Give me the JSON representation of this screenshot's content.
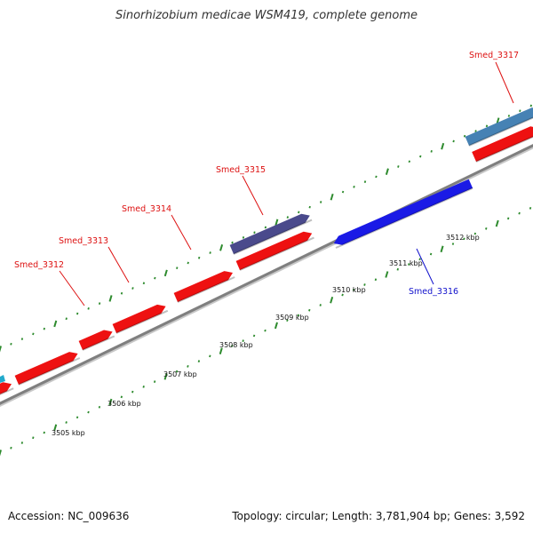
{
  "title": "Sinorhizobium medicae WSM419, complete genome",
  "footer": {
    "accession": "Accession: NC_009636",
    "summary": "Topology: circular; Length: 3,781,904 bp; Genes: 3,592"
  },
  "colors": {
    "backbone": "#7f7f7f",
    "tick": "#2e8b2e",
    "forward_gene": "#ee1111",
    "reverse_gene": "#1a1ae6",
    "rna_gene": "#4a4a8c",
    "steelblue_gene": "#4682b4",
    "label_red": "#dd1111",
    "label_blue": "#1111cc"
  },
  "scale_labels": [
    {
      "text": "3505 kbp",
      "kbp": 3505
    },
    {
      "text": "3506 kbp",
      "kbp": 3506
    },
    {
      "text": "3507 kbp",
      "kbp": 3507
    },
    {
      "text": "3508 kbp",
      "kbp": 3508
    },
    {
      "text": "3509 kbp",
      "kbp": 3509
    },
    {
      "text": "3510 kbp",
      "kbp": 3510
    },
    {
      "text": "3511 kbp",
      "kbp": 3511
    },
    {
      "text": "3512 kbp",
      "kbp": 3512
    }
  ],
  "gene_labels": [
    {
      "text": "Smed_3312",
      "color": "red"
    },
    {
      "text": "Smed_3313",
      "color": "red"
    },
    {
      "text": "Smed_3314",
      "color": "red"
    },
    {
      "text": "Smed_3315",
      "color": "red"
    },
    {
      "text": "Smed_3316",
      "color": "blue"
    },
    {
      "text": "Smed_3317",
      "color": "red"
    }
  ]
}
